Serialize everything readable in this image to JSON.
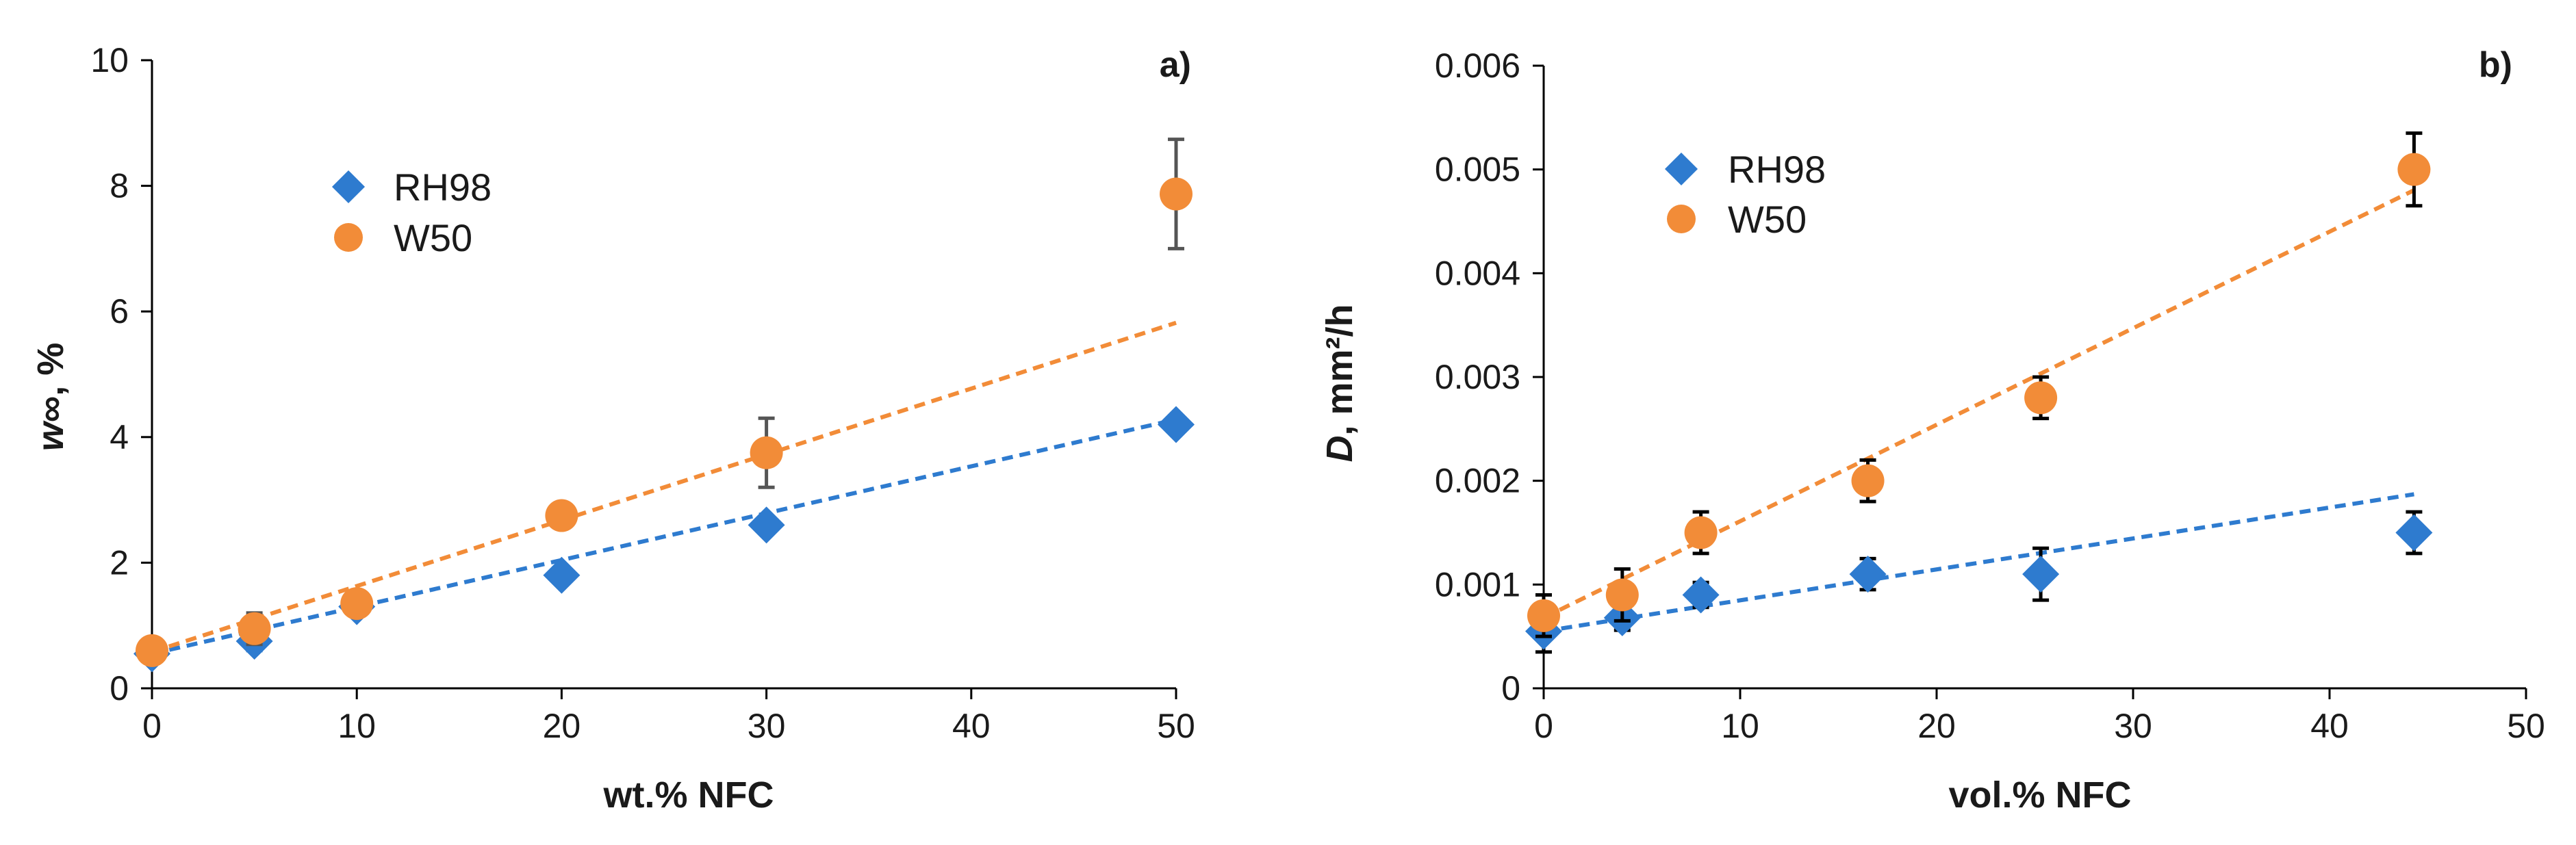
{
  "chart_data": [
    {
      "type": "scatter",
      "panel_label": "a)",
      "xlabel": "wt.% NFC",
      "ylabel_italic": "w",
      "ylabel_rest": "∞, %",
      "xlim": [
        0,
        50
      ],
      "ylim": [
        0,
        10
      ],
      "xticks": [
        0,
        10,
        20,
        30,
        40,
        50
      ],
      "yticks": [
        0,
        2,
        4,
        6,
        8,
        10
      ],
      "ytick_labels": [
        "0",
        "2",
        "4",
        "6",
        "8",
        "10"
      ],
      "legend_position": "upper-left",
      "series": [
        {
          "name": "RH98",
          "marker": "diamond",
          "color": "#2E7BCF",
          "errorbar_color": "#2E7BCF",
          "points": [
            {
              "x": 0,
              "y": 0.55,
              "err": 0.15
            },
            {
              "x": 5,
              "y": 0.75,
              "err": 0.15
            },
            {
              "x": 10,
              "y": 1.3,
              "err": 0.1
            },
            {
              "x": 20,
              "y": 1.8,
              "err": 0.1
            },
            {
              "x": 30,
              "y": 2.6,
              "err": 0.12
            },
            {
              "x": 50,
              "y": 4.2,
              "err": 0.1
            }
          ],
          "trend": {
            "x0": 0,
            "y0": 0.55,
            "x1": 50,
            "y1": 4.28
          }
        },
        {
          "name": "W50",
          "marker": "circle",
          "color": "#F28C38",
          "errorbar_color": "#555555",
          "points": [
            {
              "x": 0,
              "y": 0.6,
              "err": 0.1
            },
            {
              "x": 5,
              "y": 0.95,
              "err": 0.25
            },
            {
              "x": 10,
              "y": 1.35,
              "err": 0.1
            },
            {
              "x": 20,
              "y": 2.75,
              "err": 0.12
            },
            {
              "x": 30,
              "y": 3.75,
              "err": 0.55
            },
            {
              "x": 50,
              "y": 7.87,
              "err": 0.87
            }
          ],
          "trend": {
            "x0": 0,
            "y0": 0.58,
            "x1": 50,
            "y1": 5.82
          }
        }
      ]
    },
    {
      "type": "scatter",
      "panel_label": "b)",
      "xlabel": "vol.% NFC",
      "ylabel_italic": "D",
      "ylabel_rest": ", mm²/h",
      "xlim": [
        0,
        50
      ],
      "ylim": [
        0,
        0.006
      ],
      "xticks": [
        0,
        10,
        20,
        30,
        40,
        50
      ],
      "yticks": [
        0,
        0.001,
        0.002,
        0.003,
        0.004,
        0.005,
        0.006
      ],
      "ytick_labels": [
        "0",
        "0.001",
        "0.002",
        "0.003",
        "0.004",
        "0.005",
        "0.006"
      ],
      "legend_position": "upper-left",
      "series": [
        {
          "name": "RH98",
          "marker": "diamond",
          "color": "#2E7BCF",
          "errorbar_color": "#000000",
          "points": [
            {
              "x": 0,
              "y": 0.00055,
              "err": 0.0002
            },
            {
              "x": 4,
              "y": 0.00068,
              "err": 0.00012
            },
            {
              "x": 8,
              "y": 0.0009,
              "err": 0.00012
            },
            {
              "x": 16.5,
              "y": 0.0011,
              "err": 0.00015
            },
            {
              "x": 25.3,
              "y": 0.0011,
              "err": 0.00025
            },
            {
              "x": 44.3,
              "y": 0.0015,
              "err": 0.0002
            }
          ],
          "trend": {
            "x0": 0,
            "y0": 0.00055,
            "x1": 44.3,
            "y1": 0.00187
          }
        },
        {
          "name": "W50",
          "marker": "circle",
          "color": "#F28C38",
          "errorbar_color": "#000000",
          "points": [
            {
              "x": 0,
              "y": 0.0007,
              "err": 0.0002
            },
            {
              "x": 4,
              "y": 0.0009,
              "err": 0.00025
            },
            {
              "x": 8,
              "y": 0.0015,
              "err": 0.0002
            },
            {
              "x": 16.5,
              "y": 0.002,
              "err": 0.0002
            },
            {
              "x": 25.3,
              "y": 0.0028,
              "err": 0.0002
            },
            {
              "x": 44.3,
              "y": 0.005,
              "err": 0.00035
            }
          ],
          "trend": {
            "x0": 0,
            "y0": 0.00068,
            "x1": 44.3,
            "y1": 0.0048
          }
        }
      ]
    }
  ]
}
